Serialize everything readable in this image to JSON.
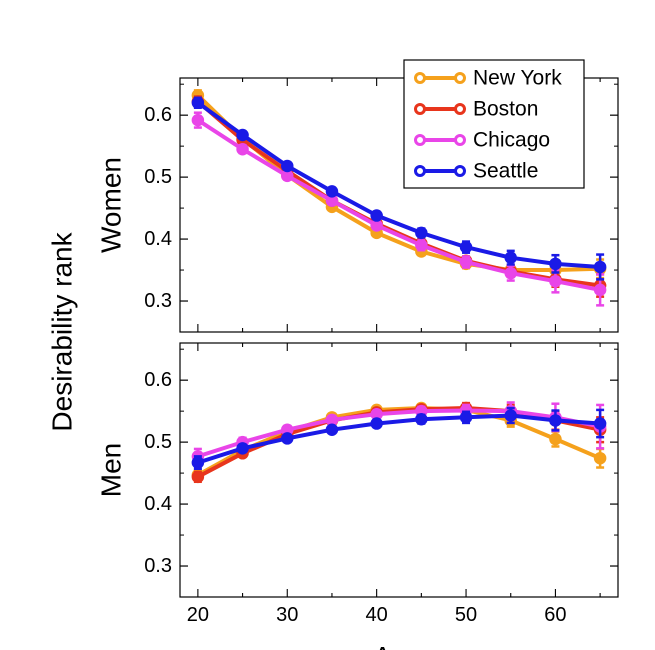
{
  "figure": {
    "ylabel": "Desirability rank",
    "xlabel": "Age",
    "legend": {
      "location": "top-right",
      "entries": [
        {
          "label": "New York",
          "color": "#F5A11C"
        },
        {
          "label": "Boston",
          "color": "#E8351C"
        },
        {
          "label": "Chicago",
          "color": "#E945E8"
        },
        {
          "label": "Seattle",
          "color": "#1A1AE6"
        }
      ]
    }
  },
  "chart_data": [
    {
      "type": "line",
      "panel": "top",
      "title": "",
      "ylabel": "Women",
      "x": [
        20,
        25,
        30,
        35,
        40,
        45,
        50,
        55,
        60,
        65
      ],
      "xlim": [
        18,
        67
      ],
      "ylim": [
        0.25,
        0.66
      ],
      "yticks": [
        "0.3",
        "0.4",
        "0.5",
        "0.6"
      ],
      "xticks": [],
      "series": [
        {
          "name": "New York",
          "color": "#F5A11C",
          "values": [
            0.632,
            0.562,
            0.503,
            0.452,
            0.41,
            0.38,
            0.36,
            0.35,
            0.35,
            0.352
          ],
          "errors": [
            0.008,
            0.005,
            0.005,
            0.005,
            0.005,
            0.006,
            0.007,
            0.008,
            0.01,
            0.015
          ]
        },
        {
          "name": "Boston",
          "color": "#E8351C",
          "values": [
            0.622,
            0.56,
            0.51,
            0.462,
            0.425,
            0.393,
            0.365,
            0.348,
            0.335,
            0.325
          ],
          "errors": [
            0.008,
            0.005,
            0.005,
            0.005,
            0.005,
            0.006,
            0.007,
            0.009,
            0.012,
            0.018
          ]
        },
        {
          "name": "Chicago",
          "color": "#E945E8",
          "values": [
            0.592,
            0.545,
            0.502,
            0.462,
            0.422,
            0.39,
            0.363,
            0.345,
            0.332,
            0.318
          ],
          "errors": [
            0.012,
            0.006,
            0.006,
            0.006,
            0.006,
            0.008,
            0.009,
            0.012,
            0.018,
            0.025
          ]
        },
        {
          "name": "Seattle",
          "color": "#1A1AE6",
          "values": [
            0.62,
            0.568,
            0.518,
            0.477,
            0.438,
            0.41,
            0.387,
            0.37,
            0.36,
            0.355
          ],
          "errors": [
            0.008,
            0.005,
            0.005,
            0.005,
            0.006,
            0.007,
            0.009,
            0.011,
            0.014,
            0.02
          ]
        }
      ]
    },
    {
      "type": "line",
      "panel": "bottom",
      "title": "",
      "ylabel": "Men",
      "x": [
        20,
        25,
        30,
        35,
        40,
        45,
        50,
        55,
        60,
        65
      ],
      "xlim": [
        18,
        67
      ],
      "ylim": [
        0.25,
        0.66
      ],
      "yticks": [
        "0.3",
        "0.4",
        "0.5",
        "0.6"
      ],
      "xticks": [
        "20",
        "30",
        "40",
        "50",
        "60"
      ],
      "series": [
        {
          "name": "New York",
          "color": "#F5A11C",
          "values": [
            0.447,
            0.487,
            0.517,
            0.54,
            0.552,
            0.555,
            0.552,
            0.535,
            0.505,
            0.474
          ],
          "errors": [
            0.008,
            0.005,
            0.005,
            0.005,
            0.005,
            0.006,
            0.008,
            0.01,
            0.012,
            0.015
          ]
        },
        {
          "name": "Boston",
          "color": "#E8351C",
          "values": [
            0.444,
            0.482,
            0.513,
            0.535,
            0.548,
            0.553,
            0.555,
            0.55,
            0.535,
            0.52
          ],
          "errors": [
            0.008,
            0.005,
            0.005,
            0.005,
            0.005,
            0.006,
            0.008,
            0.01,
            0.015,
            0.02
          ]
        },
        {
          "name": "Chicago",
          "color": "#E945E8",
          "values": [
            0.477,
            0.5,
            0.52,
            0.536,
            0.545,
            0.55,
            0.551,
            0.55,
            0.54,
            0.525
          ],
          "errors": [
            0.012,
            0.007,
            0.006,
            0.006,
            0.006,
            0.007,
            0.009,
            0.014,
            0.022,
            0.035
          ]
        },
        {
          "name": "Seattle",
          "color": "#1A1AE6",
          "values": [
            0.467,
            0.49,
            0.506,
            0.52,
            0.53,
            0.537,
            0.54,
            0.543,
            0.535,
            0.53
          ],
          "errors": [
            0.01,
            0.006,
            0.005,
            0.005,
            0.006,
            0.007,
            0.009,
            0.012,
            0.016,
            0.022
          ]
        }
      ]
    }
  ]
}
